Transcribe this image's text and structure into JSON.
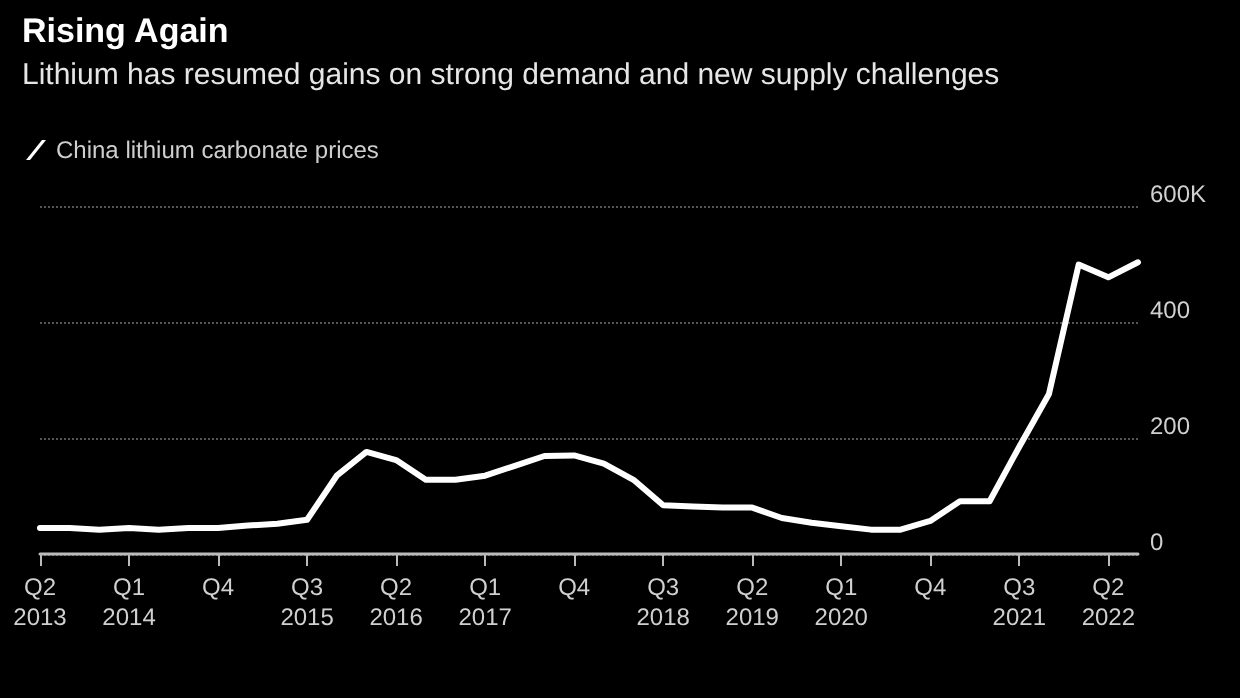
{
  "chart_data": {
    "type": "line",
    "title": "Rising Again",
    "subtitle": "Lithium has resumed gains on strong demand and new supply challenges",
    "categories": [
      "Q2 2013",
      null,
      null,
      "Q1 2014",
      null,
      null,
      "Q4",
      null,
      null,
      "Q3 2015",
      null,
      null,
      "Q2 2016",
      null,
      null,
      "Q1 2017",
      null,
      null,
      "Q4",
      null,
      null,
      "Q3 2018",
      null,
      null,
      "Q2 2019",
      null,
      null,
      "Q1 2020",
      null,
      null,
      "Q4",
      null,
      null,
      "Q3 2021",
      null,
      null,
      "Q2 2022",
      null
    ],
    "series": [
      {
        "name": "China lithium carbonate prices",
        "color": "#ffffff",
        "values": [
          45,
          45,
          42,
          45,
          42,
          45,
          45,
          49,
          52,
          59,
          135,
          176,
          162,
          128,
          128,
          135,
          152,
          169,
          170,
          156,
          128,
          84,
          82,
          80,
          80,
          62,
          54,
          48,
          42,
          42,
          57,
          91,
          91,
          185,
          276,
          499,
          477,
          503
        ]
      }
    ],
    "ylim": [
      0,
      600
    ],
    "yticks": [
      0,
      200,
      400,
      {
        "value": 600,
        "label": "600K"
      }
    ],
    "grid": "y",
    "legend": "top left",
    "marker": "none",
    "line_style": "solid"
  }
}
